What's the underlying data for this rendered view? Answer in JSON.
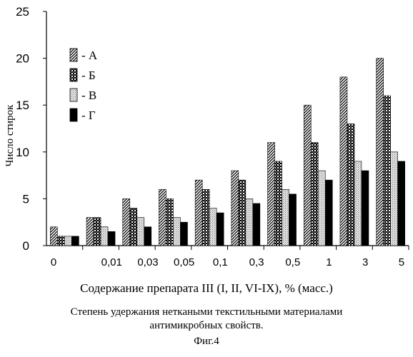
{
  "chart_data": {
    "type": "bar",
    "categories": [
      "0",
      "0,01",
      "0,03",
      "0,05",
      "0,1",
      "0,3",
      "0,5",
      "1",
      "3",
      "5"
    ],
    "series": [
      {
        "name": "- А",
        "values": [
          2,
          3,
          5,
          6,
          7,
          8,
          11,
          15,
          18,
          20
        ],
        "pattern": "hatch"
      },
      {
        "name": "- Б",
        "values": [
          1,
          3,
          4,
          5,
          6,
          7,
          9,
          11,
          13,
          16
        ],
        "pattern": "checker"
      },
      {
        "name": "- В",
        "values": [
          1,
          2,
          3,
          3,
          4,
          5,
          6,
          8,
          9,
          10
        ],
        "pattern": "dots"
      },
      {
        "name": "- Г",
        "values": [
          1,
          1.5,
          2,
          2.5,
          3.5,
          4.5,
          5.5,
          7,
          8,
          9
        ],
        "pattern": "solid"
      }
    ],
    "ylabel": "Число стирок",
    "xlabel": "Содержание препарата III (I, II, VI-IX), % (масс.)",
    "yticks": [
      0,
      5,
      10,
      15,
      20,
      25
    ],
    "ylim": [
      0,
      25
    ],
    "legend_position": "top-left",
    "grid": false
  },
  "caption": {
    "line1": "Степень удержания неткаными текстильными материалами",
    "line2": "антимикробных свойств.",
    "figure": "Фиг.4"
  }
}
